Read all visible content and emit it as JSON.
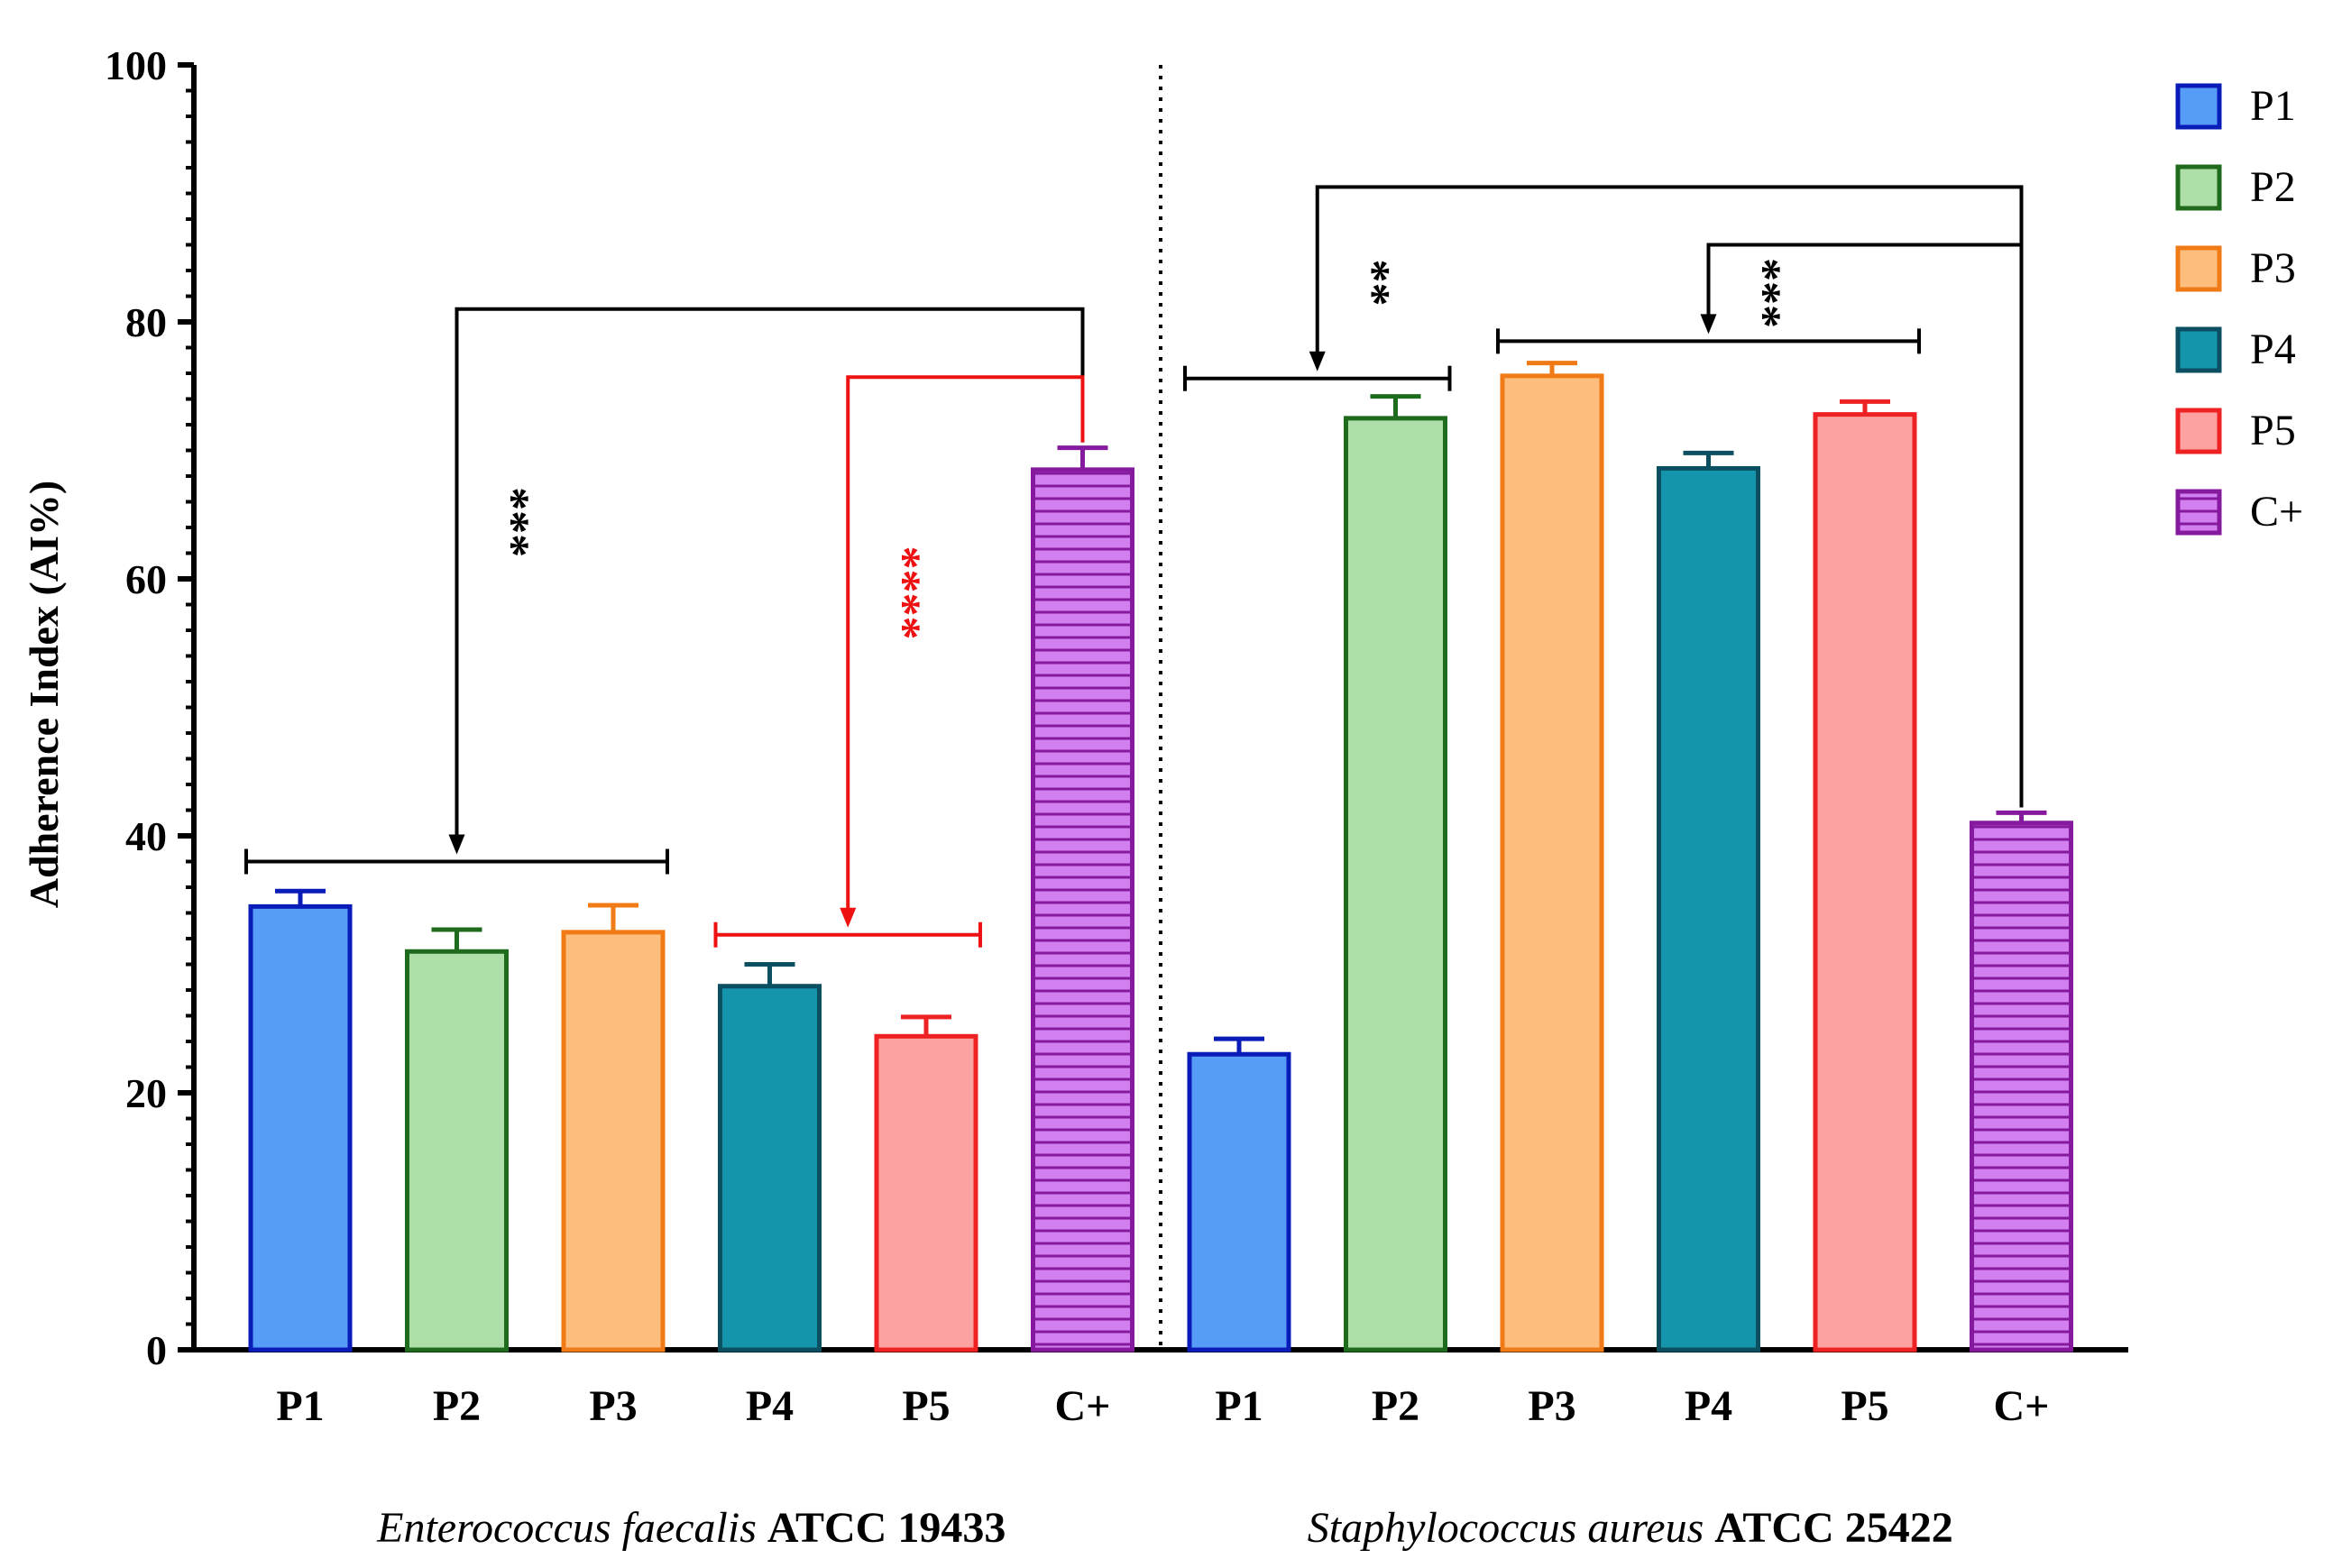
{
  "chart_data": {
    "type": "bar",
    "ylabel": "Adherence Index (AI%)",
    "ylim": [
      0,
      100
    ],
    "yticks": [
      0,
      20,
      40,
      60,
      80,
      100
    ],
    "groups": [
      {
        "name_italic": "Enterococcus faecalis",
        "name_suffix": "ATCC 19433",
        "categories": [
          "P1",
          "P2",
          "P3",
          "P4",
          "P5",
          "C+"
        ],
        "values": [
          34.5,
          31.0,
          32.5,
          28.3,
          24.4,
          68.5
        ],
        "errors": [
          1.2,
          1.7,
          2.1,
          1.7,
          1.5,
          1.7
        ]
      },
      {
        "name_italic": "Staphylococcus aureus",
        "name_suffix": "ATCC 25422",
        "categories": [
          "P1",
          "P2",
          "P3",
          "P4",
          "P5",
          "C+"
        ],
        "values": [
          23.0,
          72.5,
          75.8,
          68.6,
          72.8,
          41.0
        ],
        "errors": [
          1.2,
          1.7,
          1.0,
          1.2,
          1.0,
          0.8
        ]
      }
    ],
    "legend": [
      {
        "label": "P1",
        "fill": "#559DF7",
        "stroke": "#0A1CB8",
        "pattern": false
      },
      {
        "label": "P2",
        "fill": "#AEDFA8",
        "stroke": "#1E6B1E",
        "pattern": false
      },
      {
        "label": "P3",
        "fill": "#FDBE7D",
        "stroke": "#F07A16",
        "pattern": false
      },
      {
        "label": "P4",
        "fill": "#1495AC",
        "stroke": "#0B4F60",
        "pattern": false
      },
      {
        "label": "P5",
        "fill": "#FCA2A0",
        "stroke": "#EE2222",
        "pattern": false
      },
      {
        "label": "C+",
        "fill": "#D27FEF",
        "stroke": "#861A9E",
        "pattern": true
      }
    ],
    "legend_position": "right",
    "significance": [
      {
        "group": 0,
        "label": "***",
        "color": "#000000",
        "bracket_y": 38.0,
        "from": "C+",
        "to_range": [
          "P1",
          "P3"
        ],
        "top_y": 81.0
      },
      {
        "group": 0,
        "label": "****",
        "color": "#EE1111",
        "bracket_y": 32.3,
        "from": "C+",
        "to_range": [
          "P4",
          "P5"
        ],
        "top_y": 75.7
      },
      {
        "group": 1,
        "label": "**",
        "color": "#000000",
        "bracket_y": 75.6,
        "from": "C+",
        "to_range": [
          "P1",
          "P2"
        ],
        "top_y": 90.5
      },
      {
        "group": 1,
        "label": "***",
        "color": "#000000",
        "bracket_y": 78.5,
        "from": "C+",
        "to_range": [
          "P3",
          "P5"
        ],
        "top_y": 86.0
      }
    ]
  }
}
